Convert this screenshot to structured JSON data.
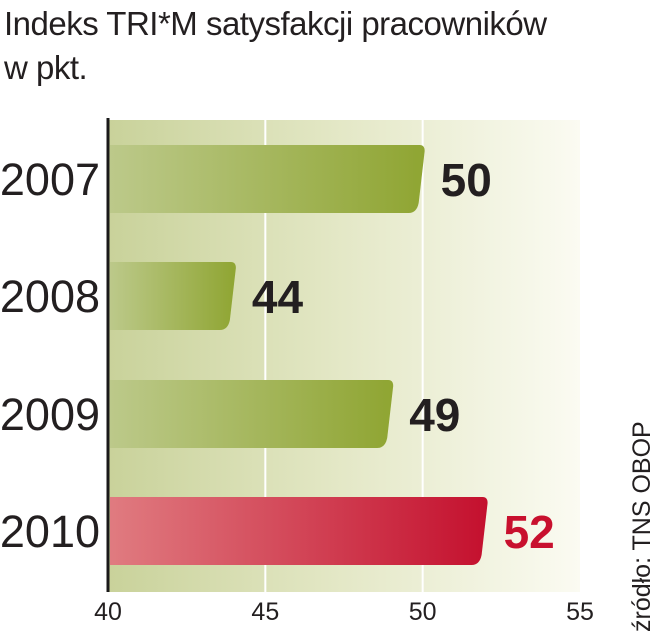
{
  "title_line1": "Indeks TRI*M satysfakcji pracowników",
  "title_line2": "w pkt.",
  "source": "źródło: TNS OBOP",
  "colors": {
    "bar": "#9caf3c",
    "highlight": "#c8102e",
    "text": "#231f20"
  },
  "chart_data": {
    "type": "bar",
    "orientation": "horizontal",
    "categories": [
      "2007",
      "2008",
      "2009",
      "2010"
    ],
    "values": [
      50,
      44,
      49,
      52
    ],
    "value_labels": [
      "50",
      "44",
      "49",
      "52"
    ],
    "highlight_index": 3,
    "xlim": [
      40,
      55
    ],
    "xticks": [
      "40",
      "45",
      "50",
      "55"
    ],
    "grid": true
  }
}
